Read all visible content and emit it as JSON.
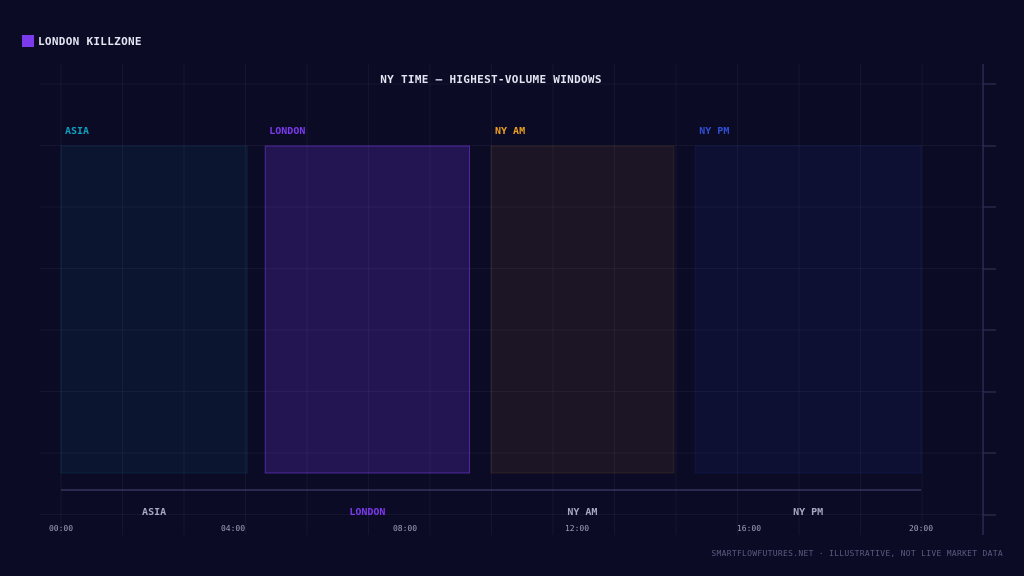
{
  "legend": {
    "label": "LONDON KILLZONE",
    "color": "#7c3aed"
  },
  "footer": "SMARTFLOWFUTURES.NET · ILLUSTRATIVE, NOT LIVE MARKET DATA",
  "chart_data": {
    "type": "bar",
    "title": "NY TIME — HIGHEST-VOLUME WINDOWS",
    "xlabel": "",
    "ylabel": "",
    "x_range": [
      0,
      20
    ],
    "x_ticks": [
      {
        "value": 0,
        "label": "00:00"
      },
      {
        "value": 4,
        "label": "04:00"
      },
      {
        "value": 8,
        "label": "08:00"
      },
      {
        "value": 12,
        "label": "12:00"
      },
      {
        "value": 16,
        "label": "16:00"
      },
      {
        "value": 20,
        "label": "20:00"
      }
    ],
    "grid": true,
    "legend_position": "top-left",
    "highlighted": "LONDON",
    "sessions": [
      {
        "name": "ASIA",
        "start": 0,
        "end": 4.33,
        "color": "#0e9fbf"
      },
      {
        "name": "LONDON",
        "start": 4.75,
        "end": 9.5,
        "color": "#7c3aed"
      },
      {
        "name": "NY AM",
        "start": 10,
        "end": 14.25,
        "color": "#f0a020"
      },
      {
        "name": "NY PM",
        "start": 14.75,
        "end": 20,
        "color": "#2f4fd6"
      }
    ]
  }
}
